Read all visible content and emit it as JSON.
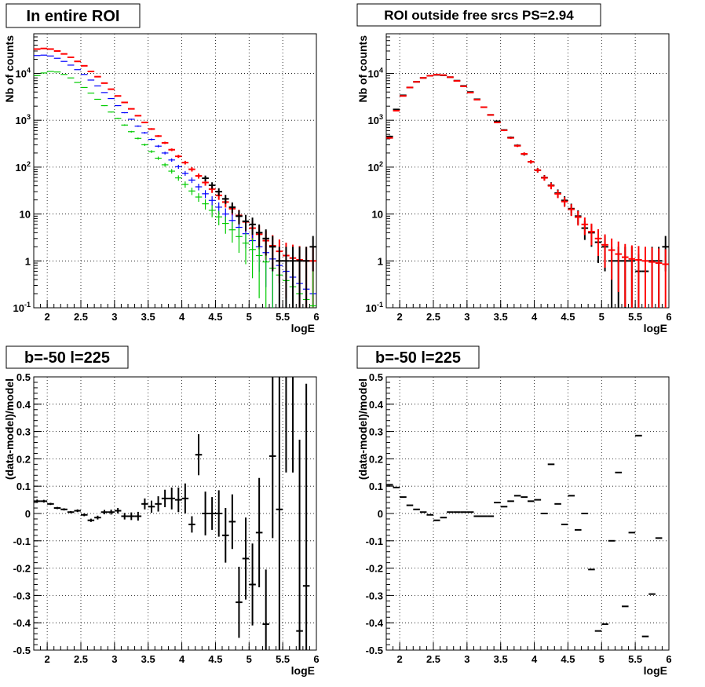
{
  "chart_data": [
    {
      "type": "scatter",
      "title": "In entire ROI",
      "xlabel": "logE",
      "ylabel": "Nb of counts",
      "xlim": [
        1.8,
        6.0
      ],
      "ylim": [
        0.1,
        70000
      ],
      "yscale": "log",
      "grid": true,
      "x_ticks": [
        "2",
        "2.5",
        "3",
        "3.5",
        "4",
        "4.5",
        "5",
        "5.5",
        "6"
      ],
      "y_ticks": [
        "10^{-1}",
        "1",
        "10",
        "10^{2}",
        "10^{3}",
        "10^{4}"
      ],
      "bin_width": 0.1,
      "series": [
        {
          "color": "#ff0000",
          "x": [
            1.85,
            1.95,
            2.05,
            2.15,
            2.25,
            2.35,
            2.45,
            2.55,
            2.65,
            2.75,
            2.85,
            2.95,
            3.05,
            3.15,
            3.25,
            3.35,
            3.45,
            3.55,
            3.65,
            3.75,
            3.85,
            3.95,
            4.05,
            4.15,
            4.25,
            4.35,
            4.45,
            4.55,
            4.65,
            4.75,
            4.85,
            4.95,
            5.05,
            5.15,
            5.25,
            5.35,
            5.45,
            5.55,
            5.65,
            5.75,
            5.85,
            5.95
          ],
          "y": [
            33000,
            34000,
            33000,
            30000,
            26000,
            22000,
            18000,
            14500,
            11000,
            8500,
            6200,
            4600,
            3300,
            2400,
            1750,
            1250,
            900,
            650,
            460,
            330,
            235,
            170,
            125,
            90,
            65,
            47,
            34,
            25,
            18,
            13,
            9.3,
            6.8,
            5,
            3.7,
            2.7,
            2.1,
            1.6,
            1.3,
            1.15,
            1.05,
            1.0,
            1.0
          ]
        },
        {
          "color": "#0000ff",
          "x": [
            1.85,
            1.95,
            2.05,
            2.15,
            2.25,
            2.35,
            2.45,
            2.55,
            2.65,
            2.75,
            2.85,
            2.95,
            3.05,
            3.15,
            3.25,
            3.35,
            3.45,
            3.55,
            3.65,
            3.75,
            3.85,
            3.95,
            4.05,
            4.15,
            4.25,
            4.35,
            4.45,
            4.55,
            4.65,
            4.75,
            4.85,
            4.95,
            5.05,
            5.15,
            5.25,
            5.35,
            5.45,
            5.55,
            5.65,
            5.75,
            5.85,
            5.95
          ],
          "y": [
            24000,
            24500,
            23500,
            21000,
            18000,
            15000,
            12000,
            9500,
            7200,
            5400,
            3900,
            2900,
            2050,
            1450,
            1050,
            750,
            540,
            390,
            280,
            200,
            142,
            102,
            74,
            53,
            38,
            27,
            19.5,
            14,
            10,
            7.3,
            5.2,
            3.8,
            2.7,
            2,
            1.5,
            1.1,
            0.8,
            0.6,
            0.45,
            0.33,
            0.25,
            0.2
          ]
        },
        {
          "color": "#00cc00",
          "x": [
            1.85,
            1.95,
            2.05,
            2.15,
            2.25,
            2.35,
            2.45,
            2.55,
            2.65,
            2.75,
            2.85,
            2.95,
            3.05,
            3.15,
            3.25,
            3.35,
            3.45,
            3.55,
            3.65,
            3.75,
            3.85,
            3.95,
            4.05,
            4.15,
            4.25,
            4.35,
            4.45,
            4.55,
            4.65,
            4.75,
            4.85,
            4.95,
            5.05,
            5.15,
            5.25,
            5.35,
            5.45,
            5.55,
            5.65,
            5.75,
            5.85,
            5.95
          ],
          "y": [
            9000,
            10200,
            11000,
            10700,
            9500,
            8000,
            6400,
            5000,
            3800,
            2800,
            2050,
            1500,
            1100,
            790,
            570,
            410,
            300,
            215,
            155,
            112,
            82,
            59,
            43,
            31,
            23,
            16.5,
            12,
            8.7,
            6.3,
            4.6,
            3.3,
            2.4,
            1.75,
            1.3,
            0.95,
            0.7,
            0.5,
            0.38,
            0.28,
            0.2,
            0.15,
            0.11
          ]
        },
        {
          "color": "#000000",
          "x": [
            4.35,
            4.45,
            4.55,
            4.65,
            4.75,
            4.85,
            4.95,
            5.05,
            5.15,
            5.25,
            5.35,
            5.45,
            5.55,
            5.65,
            5.75,
            5.85,
            5.95
          ],
          "y": [
            58,
            41,
            30,
            21,
            14,
            9,
            7,
            6,
            4,
            3,
            2,
            1,
            1,
            1,
            1,
            1,
            2
          ],
          "yerr": [
            8,
            6.5,
            5.5,
            4.6,
            3.7,
            3,
            2.6,
            2.4,
            2,
            1.7,
            1.4,
            1,
            1,
            1,
            1,
            1,
            1.4
          ]
        }
      ]
    },
    {
      "type": "scatter",
      "title": "ROI outside free srcs PS=2.94",
      "xlabel": "logE",
      "ylabel": "Nb of counts",
      "xlim": [
        1.8,
        6.0
      ],
      "ylim": [
        0.1,
        70000
      ],
      "yscale": "log",
      "grid": true,
      "x_ticks": [
        "2",
        "2.5",
        "3",
        "3.5",
        "4",
        "4.5",
        "5",
        "5.5",
        "6"
      ],
      "y_ticks": [
        "10^{-1}",
        "1",
        "10",
        "10^{2}",
        "10^{3}",
        "10^{4}"
      ],
      "bin_width": 0.1,
      "series": [
        {
          "color": "#000000",
          "x": [
            1.85,
            1.95,
            2.05,
            2.15,
            2.25,
            2.35,
            2.45,
            2.55,
            2.65,
            2.75,
            2.85,
            2.95,
            3.05,
            3.15,
            3.25,
            3.35,
            3.45,
            3.55,
            3.65,
            3.75,
            3.85,
            3.95,
            4.05,
            4.15,
            4.25,
            4.35,
            4.45,
            4.55,
            4.65,
            4.75,
            4.85,
            4.95,
            5.05,
            5.15,
            5.25,
            5.35,
            5.45,
            5.55,
            5.65,
            5.75,
            5.85,
            5.95
          ],
          "y": [
            450,
            1700,
            3400,
            5000,
            6600,
            8000,
            8900,
            9300,
            9100,
            8300,
            7000,
            5400,
            4000,
            2800,
            1900,
            1300,
            950,
            620,
            430,
            290,
            190,
            130,
            86,
            60,
            41,
            28,
            19.5,
            13,
            9,
            5,
            4,
            2.5,
            2,
            1,
            1,
            1,
            1,
            0.6,
            0.6,
            1,
            1,
            2
          ],
          "yerr": [
            21,
            41,
            58,
            71,
            81,
            89,
            94,
            96,
            95,
            91,
            84,
            73,
            63,
            53,
            44,
            36,
            31,
            25,
            21,
            17,
            14,
            11,
            9.3,
            7.7,
            6.4,
            5.3,
            4.4,
            3.6,
            3,
            2.2,
            2,
            1.6,
            1.4,
            1,
            1,
            1,
            1,
            0.8,
            0.8,
            1,
            1,
            1.4
          ]
        },
        {
          "color": "#ff0000",
          "x": [
            1.85,
            1.95,
            2.05,
            2.15,
            2.25,
            2.35,
            2.45,
            2.55,
            2.65,
            2.75,
            2.85,
            2.95,
            3.05,
            3.15,
            3.25,
            3.35,
            3.45,
            3.55,
            3.65,
            3.75,
            3.85,
            3.95,
            4.05,
            4.15,
            4.25,
            4.35,
            4.45,
            4.55,
            4.65,
            4.75,
            4.85,
            4.95,
            5.05,
            5.15,
            5.25,
            5.35,
            5.45,
            5.55,
            5.65,
            5.75,
            5.85,
            5.95
          ],
          "y": [
            420,
            1600,
            3300,
            5000,
            6600,
            8000,
            8900,
            9400,
            9200,
            8300,
            6900,
            5300,
            3900,
            2750,
            1900,
            1300,
            900,
            610,
            420,
            285,
            192,
            130,
            86,
            59,
            40,
            27,
            18.5,
            12.6,
            8.6,
            6,
            4.2,
            3,
            2.2,
            1.7,
            1.4,
            1.2,
            1.1,
            1.05,
            1.0,
            0.95,
            0.9,
            0.85
          ]
        }
      ]
    },
    {
      "type": "scatter",
      "title": "b=-50 l=225",
      "xlabel": "logE",
      "ylabel": "(data-model)/model",
      "xlim": [
        1.8,
        6.0
      ],
      "ylim": [
        -0.5,
        0.5
      ],
      "grid": true,
      "x_ticks": [
        "2",
        "2.5",
        "3",
        "3.5",
        "4",
        "4.5",
        "5",
        "5.5",
        "6"
      ],
      "y_ticks": [
        "-0.5",
        "-0.4",
        "-0.3",
        "-0.2",
        "-0.1",
        "0",
        "0.1",
        "0.2",
        "0.3",
        "0.4",
        "0.5"
      ],
      "bin_width": 0.1,
      "series": [
        {
          "color": "#000000",
          "x": [
            1.85,
            1.95,
            2.05,
            2.15,
            2.25,
            2.35,
            2.45,
            2.55,
            2.65,
            2.75,
            2.85,
            2.95,
            3.05,
            3.15,
            3.25,
            3.35,
            3.45,
            3.55,
            3.65,
            3.75,
            3.85,
            3.95,
            4.05,
            4.15,
            4.25,
            4.35,
            4.45,
            4.55,
            4.65,
            4.75,
            4.85,
            4.95,
            5.05,
            5.15,
            5.25,
            5.35,
            5.45,
            5.55,
            5.65,
            5.75,
            5.85
          ],
          "y": [
            0.045,
            0.045,
            0.035,
            0.02,
            0.015,
            0.005,
            0.01,
            -0.005,
            -0.025,
            -0.015,
            0.005,
            0.005,
            0.01,
            -0.01,
            -0.01,
            -0.01,
            0.035,
            0.025,
            0.035,
            0.055,
            0.055,
            0.05,
            0.055,
            -0.04,
            0.215,
            0.0,
            0.0,
            0.0,
            -0.08,
            -0.03,
            -0.325,
            -0.165,
            -0.26,
            -0.07,
            -0.405,
            0.21,
            0.015,
            0.55,
            0.55,
            -0.43,
            -0.265
          ],
          "yerr": [
            0.006,
            0.005,
            0.004,
            0.004,
            0.004,
            0.004,
            0.005,
            0.005,
            0.006,
            0.007,
            0.008,
            0.009,
            0.01,
            0.012,
            0.014,
            0.016,
            0.02,
            0.022,
            0.028,
            0.032,
            0.04,
            0.045,
            0.055,
            0.03,
            0.075,
            0.08,
            0.06,
            0.085,
            0.1,
            0.1,
            0.13,
            0.15,
            0.15,
            0.2,
            0.2,
            0.3,
            0.65,
            0.4,
            0.4,
            0.7,
            0.74
          ]
        }
      ]
    },
    {
      "type": "scatter",
      "title": "b=-50 l=225",
      "xlabel": "logE",
      "ylabel": "(data-model)/model",
      "xlim": [
        1.8,
        6.0
      ],
      "ylim": [
        -0.5,
        0.5
      ],
      "grid": true,
      "x_ticks": [
        "2",
        "2.5",
        "3",
        "3.5",
        "4",
        "4.5",
        "5",
        "5.5",
        "6"
      ],
      "y_ticks": [
        "-0.5",
        "-0.4",
        "-0.3",
        "-0.2",
        "-0.1",
        "0",
        "0.1",
        "0.2",
        "0.3",
        "0.4",
        "0.5"
      ],
      "bin_width": 0.1,
      "series": [
        {
          "color": "#000000",
          "x": [
            1.85,
            1.95,
            2.05,
            2.15,
            2.25,
            2.35,
            2.45,
            2.55,
            2.65,
            2.75,
            2.85,
            2.95,
            3.05,
            3.15,
            3.25,
            3.35,
            3.45,
            3.55,
            3.65,
            3.75,
            3.85,
            3.95,
            4.05,
            4.15,
            4.25,
            4.35,
            4.45,
            4.55,
            4.65,
            4.75,
            4.85,
            4.95,
            5.05,
            5.15,
            5.25,
            5.35,
            5.45,
            5.55,
            5.65,
            5.75,
            5.85
          ],
          "y": [
            0.105,
            0.095,
            0.06,
            0.03,
            0.015,
            0.005,
            -0.005,
            -0.025,
            -0.015,
            0.005,
            0.005,
            0.005,
            0.005,
            -0.01,
            -0.01,
            -0.01,
            0.04,
            0.025,
            0.045,
            0.065,
            0.06,
            0.045,
            0.05,
            0.0,
            0.18,
            0.035,
            -0.04,
            0.065,
            -0.06,
            0.0,
            -0.205,
            -0.43,
            -0.405,
            -0.1,
            0.15,
            -0.34,
            -0.07,
            0.285,
            -0.45,
            -0.295,
            -0.09
          ]
        },
        {
          "color": "#000000",
          "x": [],
          "y": []
        }
      ]
    }
  ]
}
